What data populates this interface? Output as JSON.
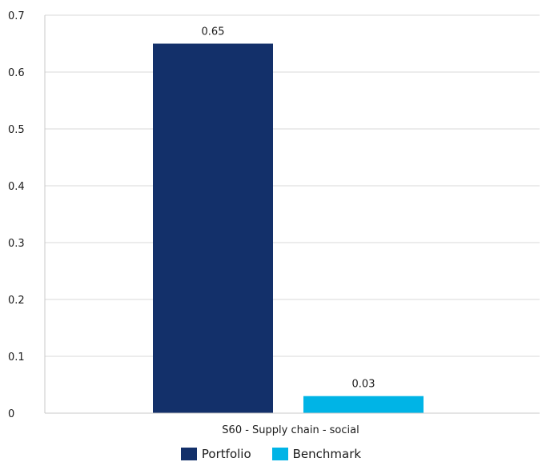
{
  "chart_data": {
    "type": "bar",
    "categories": [
      "S60 - Supply chain - social"
    ],
    "series": [
      {
        "name": "Portfolio",
        "values": [
          0.65
        ],
        "color": "#13306a"
      },
      {
        "name": "Benchmark",
        "values": [
          0.03
        ],
        "color": "#00b4e6"
      }
    ],
    "data_labels": [
      "0.65",
      "0.03"
    ],
    "ylim": [
      0,
      0.7
    ],
    "yticks": [
      "0",
      "0.1",
      "0.2",
      "0.3",
      "0.4",
      "0.5",
      "0.6",
      "0.7"
    ],
    "grid": true,
    "legend_position": "bottom"
  }
}
